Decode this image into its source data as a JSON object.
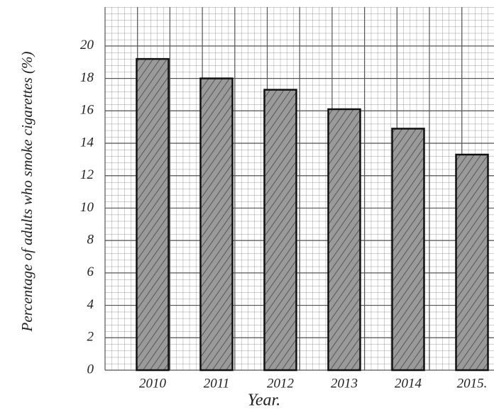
{
  "chart_data": {
    "type": "bar",
    "y_label": "Percentage of adults who smoke cigarettes (%)",
    "x_label": "Year.",
    "categories": [
      "2010",
      "2011",
      "2012",
      "2013",
      "2014",
      "2015."
    ],
    "values": [
      19.2,
      18.0,
      17.3,
      16.1,
      14.9,
      13.3
    ],
    "color": "#8a8a8a",
    "ylim": [
      0,
      22.4
    ],
    "yticks": [
      0,
      2,
      4,
      6,
      8,
      10,
      12,
      14,
      16,
      18,
      20
    ],
    "grid": true
  }
}
